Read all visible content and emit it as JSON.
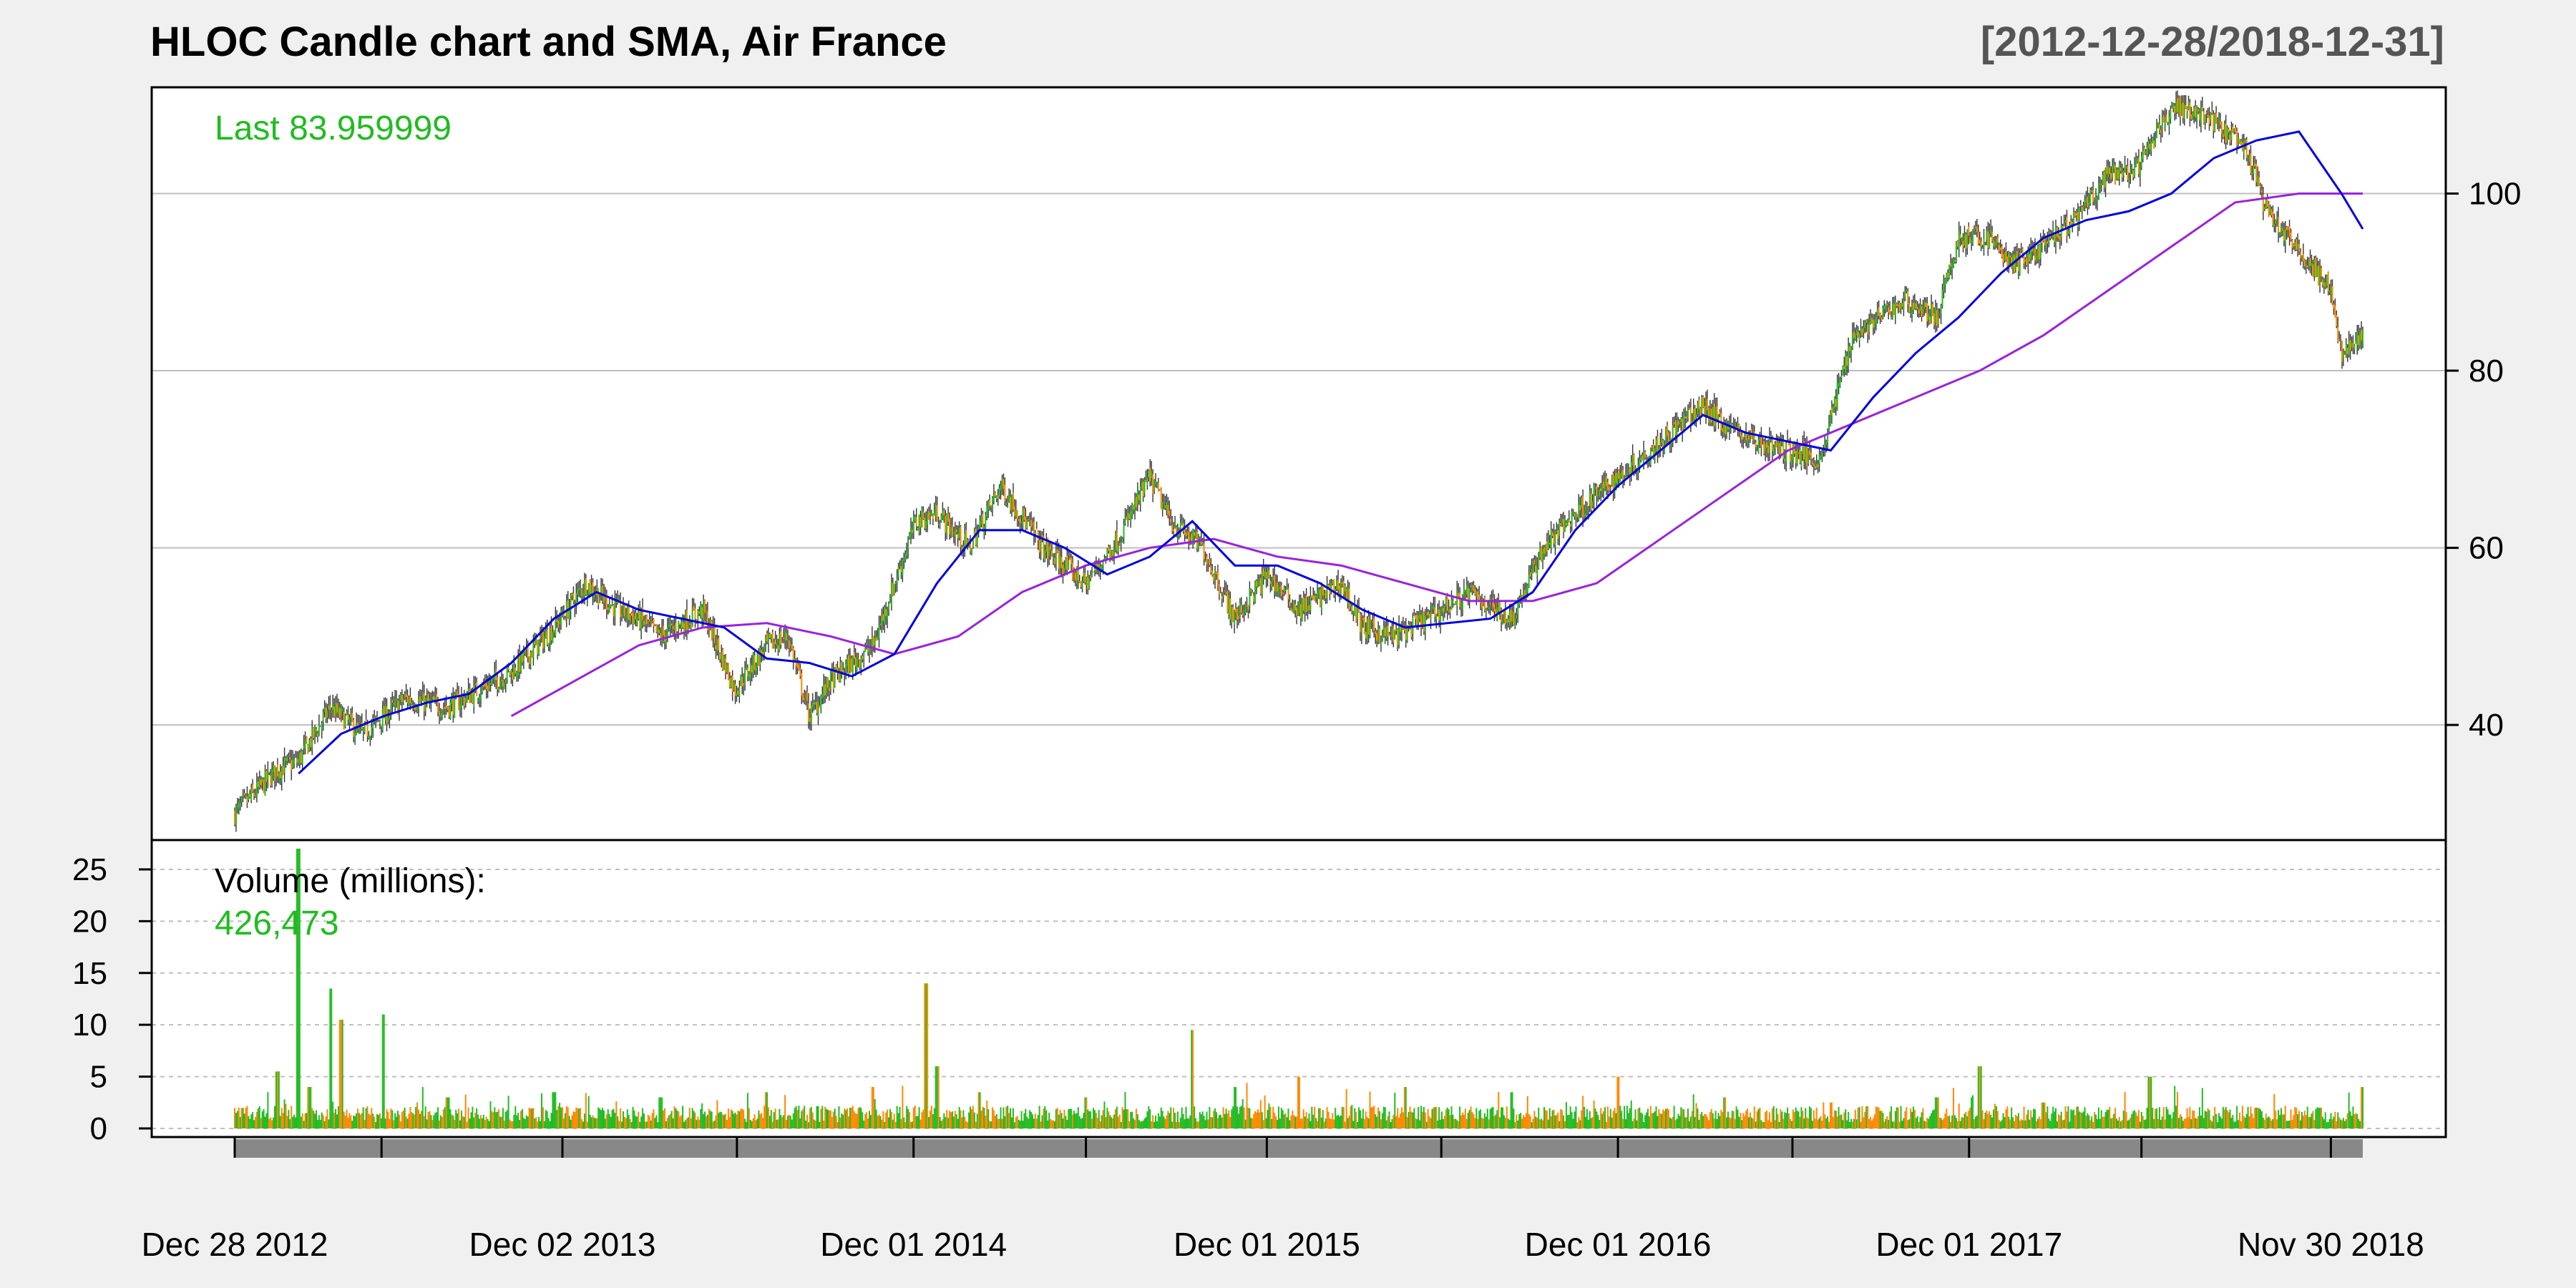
{
  "chart_data": {
    "type": "candlestick",
    "title": "HLOC Candle chart and SMA, Air France",
    "date_range": "[2012-12-28/2018-12-31]",
    "last_label": "Last 83.959999",
    "volume_label": "Volume (millions):",
    "volume_last": "426,473",
    "price_axis": {
      "ylim": [
        27,
        112
      ],
      "ticks": [
        40,
        60,
        80,
        100
      ],
      "side": "right"
    },
    "volume_axis": {
      "ylim": [
        0,
        27
      ],
      "ticks": [
        0,
        5,
        10,
        15,
        20,
        25
      ],
      "side": "left"
    },
    "x_axis": {
      "labels": [
        "Dec 28 2012",
        "Dec 02 2013",
        "Dec 01 2014",
        "Dec 01 2015",
        "Dec 01 2016",
        "Dec 01 2017",
        "Nov 30 2018"
      ],
      "label_positions": [
        0,
        0.154,
        0.319,
        0.485,
        0.65,
        0.815,
        0.985
      ],
      "major_ticks": [
        0,
        0.069,
        0.154,
        0.236,
        0.319,
        0.4,
        0.485,
        0.567,
        0.65,
        0.732,
        0.815,
        0.896,
        0.985
      ]
    },
    "price_series": {
      "x": [
        0,
        0.02,
        0.03,
        0.045,
        0.06,
        0.08,
        0.1,
        0.115,
        0.13,
        0.15,
        0.165,
        0.18,
        0.19,
        0.2,
        0.22,
        0.235,
        0.25,
        0.26,
        0.27,
        0.28,
        0.3,
        0.32,
        0.33,
        0.345,
        0.36,
        0.38,
        0.4,
        0.415,
        0.43,
        0.44,
        0.455,
        0.47,
        0.485,
        0.5,
        0.52,
        0.53,
        0.545,
        0.56,
        0.58,
        0.6,
        0.615,
        0.63,
        0.645,
        0.66,
        0.675,
        0.69,
        0.7,
        0.715,
        0.73,
        0.745,
        0.76,
        0.785,
        0.8,
        0.81,
        0.825,
        0.835,
        0.85,
        0.865,
        0.88,
        0.895,
        0.91,
        0.925,
        0.935,
        0.945,
        0.955,
        0.965,
        0.975,
        0.985,
        0.99,
        1.0
      ],
      "close": [
        30,
        35,
        36,
        42,
        39,
        43,
        42,
        44,
        46,
        51,
        56,
        53,
        52,
        50,
        53,
        44,
        49,
        50,
        41,
        45,
        49,
        63,
        64,
        60,
        67,
        60,
        56,
        61,
        68,
        63,
        60,
        52,
        57,
        53,
        56,
        51,
        50,
        52,
        55,
        52,
        60,
        64,
        67,
        70,
        73,
        76,
        74,
        72,
        71,
        70,
        84,
        88,
        86,
        95,
        95,
        92,
        94,
        97,
        102,
        103,
        110,
        109,
        107,
        105,
        98,
        95,
        92,
        89,
        82,
        84
      ]
    },
    "sma_short": {
      "name": "",
      "color": "#0000dd",
      "x": [
        0.03,
        0.05,
        0.07,
        0.09,
        0.11,
        0.13,
        0.15,
        0.17,
        0.19,
        0.21,
        0.23,
        0.25,
        0.27,
        0.29,
        0.31,
        0.33,
        0.35,
        0.37,
        0.39,
        0.41,
        0.43,
        0.45,
        0.47,
        0.49,
        0.51,
        0.53,
        0.55,
        0.57,
        0.59,
        0.61,
        0.63,
        0.65,
        0.67,
        0.69,
        0.71,
        0.73,
        0.75,
        0.77,
        0.79,
        0.81,
        0.83,
        0.85,
        0.87,
        0.89,
        0.91,
        0.93,
        0.95,
        0.97,
        0.99,
        1.0
      ],
      "y": [
        34.5,
        39,
        41,
        42.5,
        43.5,
        47,
        52,
        55,
        53,
        52,
        51,
        47.5,
        47,
        45.5,
        48,
        56,
        62,
        62,
        60,
        57,
        59,
        63,
        58,
        58,
        56,
        53,
        51,
        51.5,
        52,
        55,
        62,
        67,
        71,
        75,
        73,
        72,
        71,
        77,
        82,
        86,
        91,
        95,
        97,
        98,
        100,
        104,
        106,
        107,
        100,
        96
      ]
    },
    "sma_long": {
      "name": "",
      "color": "#9922dd",
      "x": [
        0.13,
        0.16,
        0.19,
        0.22,
        0.25,
        0.28,
        0.31,
        0.34,
        0.37,
        0.4,
        0.43,
        0.46,
        0.49,
        0.52,
        0.55,
        0.58,
        0.61,
        0.64,
        0.67,
        0.7,
        0.73,
        0.76,
        0.79,
        0.82,
        0.85,
        0.88,
        0.91,
        0.94,
        0.97,
        1.0
      ],
      "y": [
        41,
        45,
        49,
        51,
        51.5,
        50,
        48,
        50,
        55,
        58,
        60,
        61,
        59,
        58,
        56,
        54,
        54,
        56,
        61,
        66,
        71,
        74,
        77,
        80,
        84,
        89,
        94,
        99,
        100,
        100
      ]
    },
    "volume_series": {
      "x": [
        0,
        0.02,
        0.03,
        0.035,
        0.045,
        0.05,
        0.07,
        0.1,
        0.15,
        0.2,
        0.25,
        0.3,
        0.325,
        0.33,
        0.35,
        0.4,
        0.45,
        0.47,
        0.5,
        0.55,
        0.6,
        0.65,
        0.7,
        0.75,
        0.8,
        0.82,
        0.85,
        0.9,
        0.95,
        0.98,
        1.0
      ],
      "values": [
        1.5,
        5.5,
        27,
        4,
        13.5,
        10.5,
        11,
        3,
        3.5,
        3,
        3.5,
        4,
        14,
        6,
        3.5,
        3,
        9.5,
        4,
        5,
        4,
        3.5,
        5,
        3,
        2.5,
        3,
        6,
        2.5,
        5,
        2,
        2,
        4
      ]
    },
    "colors": {
      "up": "#22bb22",
      "down": "#ff8800",
      "last_text": "#22bb22",
      "grid": "#bfbfbf",
      "slider": "#888888"
    }
  }
}
